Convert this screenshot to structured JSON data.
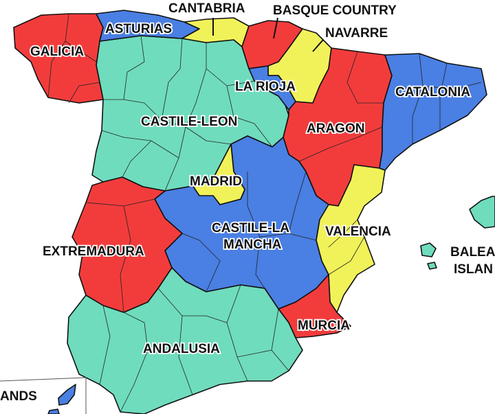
{
  "colors": {
    "red": "#f23c3c",
    "blue": "#4a7fe3",
    "teal": "#6fdcbd",
    "yellow": "#f1f25a",
    "border": "#111111"
  },
  "regions": {
    "galicia": {
      "label": "GALICIA",
      "color": "red"
    },
    "asturias": {
      "label": "ASTURIAS",
      "color": "blue"
    },
    "cantabria": {
      "label": "CANTABRIA",
      "color": "yellow"
    },
    "basque_country": {
      "label": "BASQUE COUNTRY",
      "color": "red"
    },
    "navarre": {
      "label": "NAVARRE",
      "color": "yellow"
    },
    "la_rioja": {
      "label": "LA RIOJA",
      "color": "blue"
    },
    "castile_leon": {
      "label": "CASTILE-LEON",
      "color": "teal"
    },
    "aragon": {
      "label": "ARAGON",
      "color": "red"
    },
    "catalonia": {
      "label": "CATALONIA",
      "color": "blue"
    },
    "madrid": {
      "label": "MADRID",
      "color": "yellow"
    },
    "castile_la_mancha": {
      "label_line1": "CASTILE-LA",
      "label_line2": "MANCHA",
      "color": "blue"
    },
    "valencia": {
      "label": "VALENCIA",
      "color": "yellow"
    },
    "extremadura": {
      "label": "EXTREMADURA",
      "color": "red"
    },
    "murcia": {
      "label": "MURCIA",
      "color": "red"
    },
    "andalusia": {
      "label": "ANDALUSIA",
      "color": "teal"
    },
    "balearic": {
      "label_line1": "BALEA",
      "label_line2": "ISLAN",
      "color": "teal"
    },
    "canary": {
      "label": "ANDS",
      "color": "blue"
    }
  }
}
